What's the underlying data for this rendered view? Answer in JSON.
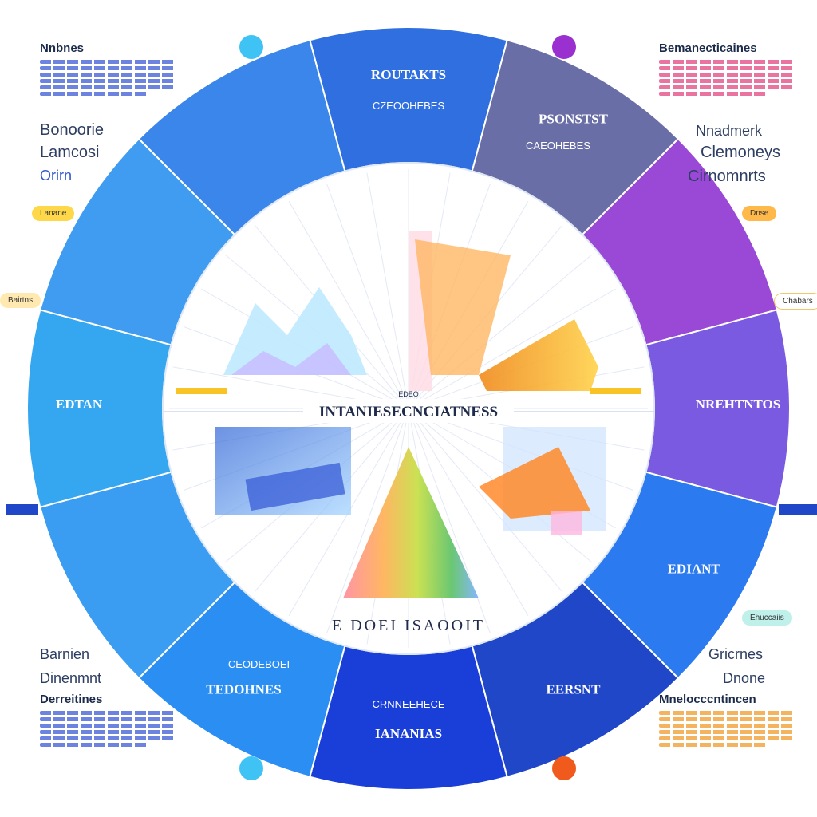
{
  "center_title": "INTANIESECNCIATNESS",
  "center_badge": "EDEO",
  "bottom_arc_text": "E DOEI ISAOOIT",
  "segments": [
    {
      "label": "ROUTAKTS",
      "sub": "CZEOOHEBES",
      "color": "#2f6fe0"
    },
    {
      "label": "PSONSTST",
      "sub": "CAEOHEBES",
      "color": "#6a6ea6"
    },
    {
      "label": "",
      "sub": "",
      "color": "#9a49d6"
    },
    {
      "label": "NREHTNTOS",
      "sub": "",
      "color": "#7a5ae0"
    },
    {
      "label": "EDIANT",
      "sub": "",
      "color": "#2b7af0"
    },
    {
      "label": "EERSNT",
      "sub": "",
      "color": "#1f47c7"
    },
    {
      "label": "IANANIAS",
      "sub": "CRNNEEHECE",
      "color": "#1a3fd9"
    },
    {
      "label": "TEDOHNES",
      "sub": "CEODEBOEI",
      "color": "#2a8ef2"
    },
    {
      "label": "",
      "sub": "",
      "color": "#3a9df2"
    },
    {
      "label": "EDTAN",
      "sub": "",
      "color": "#35a6f0"
    },
    {
      "label": "",
      "sub": "",
      "color": "#3f9cf0"
    },
    {
      "label": "",
      "sub": "",
      "color": "#3b86ea"
    }
  ],
  "corners": {
    "top_left": {
      "title": "Nnbnes",
      "lines": [
        "Bonoorie",
        "Lamcosi",
        "Orirn"
      ]
    },
    "top_right": {
      "title": "Bemanecticaines",
      "lines": [
        "Nnadmerk",
        "Clemoneys",
        "Cirnomnrts"
      ]
    },
    "bottom_left": {
      "title": "Derreitines",
      "lines": [
        "Barnien",
        "Dinenmnt"
      ]
    },
    "bottom_right": {
      "title": "Mnelocccntincen",
      "lines": [
        "Gricrnes",
        "Dnone"
      ]
    }
  },
  "pills": {
    "left_upper": "Lanane",
    "left_mid": "Bairtns",
    "right_upper": "Dnse",
    "right_mid": "Chabars",
    "right_lower": "Ehuccaiis"
  },
  "colors": {
    "ring_light": "#57b6f6",
    "ring_dark": "#1f47c7",
    "ring_purple": "#9a49d6",
    "center_bg": "#ffffff",
    "accent_orange": "#f29a1f",
    "accent_yellow": "#f7c325"
  }
}
